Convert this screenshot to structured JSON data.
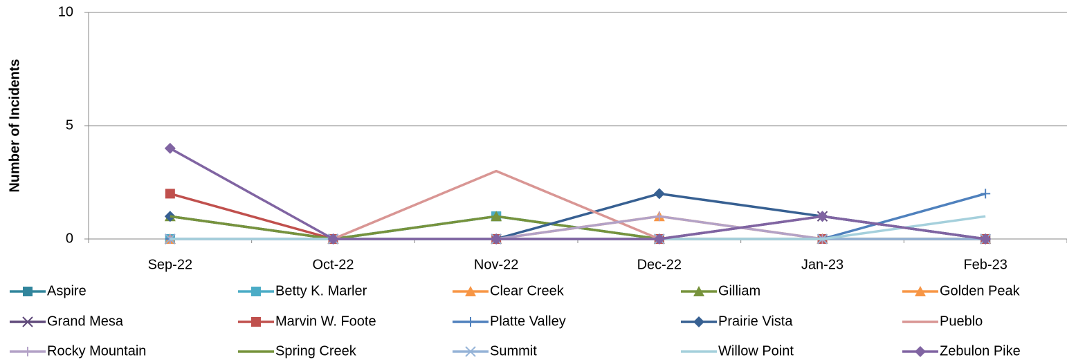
{
  "chart_data": {
    "type": "line",
    "y_label": "Number of Incidents",
    "categories": [
      "Sep-22",
      "Oct-22",
      "Nov-22",
      "Dec-22",
      "Jan-23",
      "Feb-23"
    ],
    "ylim": [
      0,
      10
    ],
    "yticks": [
      0,
      5,
      10
    ],
    "grid": true,
    "legend": "bottom",
    "series": [
      {
        "name": "Aspire",
        "color": "#31859c",
        "marker": "square",
        "values": [
          0,
          0,
          1,
          0,
          0,
          0
        ]
      },
      {
        "name": "Betty K. Marler",
        "color": "#4bacc6",
        "marker": "square",
        "values": [
          0,
          0,
          1,
          0,
          0,
          0
        ]
      },
      {
        "name": "Clear Creek",
        "color": "#f79646",
        "marker": "triangle",
        "values": [
          0,
          0,
          0,
          1,
          0,
          0
        ]
      },
      {
        "name": "Gilliam",
        "color": "#77933c",
        "marker": "triangle",
        "values": [
          1,
          0,
          1,
          0,
          0,
          0
        ]
      },
      {
        "name": "Golden Peak",
        "color": "#f79646",
        "marker": "triangle",
        "values": [
          0,
          0,
          0,
          0,
          0,
          0
        ]
      },
      {
        "name": "Grand Mesa",
        "color": "#604a7b",
        "marker": "x",
        "values": [
          0,
          0,
          0,
          0,
          1,
          0
        ]
      },
      {
        "name": "Marvin W. Foote",
        "color": "#c0504d",
        "marker": "square",
        "values": [
          2,
          0,
          0,
          0,
          0,
          0
        ]
      },
      {
        "name": "Platte Valley",
        "color": "#4f81bd",
        "marker": "plus",
        "values": [
          0,
          0,
          0,
          0,
          0,
          2
        ]
      },
      {
        "name": "Prairie Vista",
        "color": "#376092",
        "marker": "diamond",
        "values": [
          1,
          0,
          0,
          2,
          1,
          0
        ]
      },
      {
        "name": "Pueblo",
        "color": "#d99694",
        "marker": "none",
        "values": [
          0,
          0,
          3,
          0,
          0,
          0
        ]
      },
      {
        "name": "Rocky Mountain",
        "color": "#b3a2c7",
        "marker": "dash",
        "values": [
          0,
          0,
          0,
          1,
          0,
          0
        ]
      },
      {
        "name": "Spring Creek",
        "color": "#77933c",
        "marker": "none",
        "values": [
          1,
          0,
          0,
          0,
          0,
          0
        ]
      },
      {
        "name": "Summit",
        "color": "#95b3d7",
        "marker": "x",
        "values": [
          0,
          0,
          0,
          0,
          0,
          0
        ]
      },
      {
        "name": "Willow Point",
        "color": "#a5d0dc",
        "marker": "none",
        "values": [
          0,
          0,
          0,
          0,
          0,
          1
        ]
      },
      {
        "name": "Zebulon Pike",
        "color": "#8064a2",
        "marker": "diamond",
        "values": [
          4,
          0,
          0,
          0,
          1,
          0
        ]
      }
    ]
  }
}
